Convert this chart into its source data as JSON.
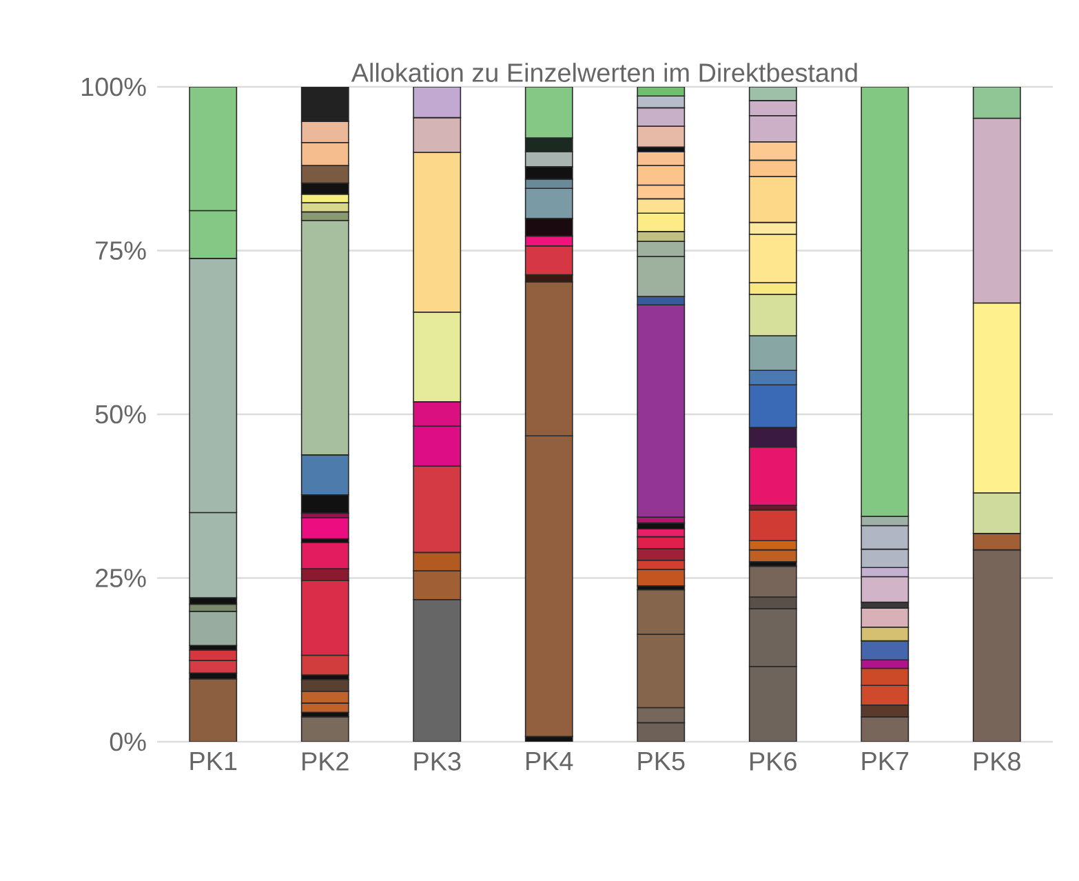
{
  "chart_data": {
    "type": "bar",
    "title": "Allokation zu Einzelwerten im Direktbestand",
    "stacked": true,
    "grid": "y",
    "categories": [
      "PK1",
      "PK2",
      "PK3",
      "PK4",
      "PK5",
      "PK6",
      "PK7",
      "PK8"
    ],
    "ylim": [
      0,
      100
    ],
    "yticks": [
      {
        "value": 0,
        "label": "0%"
      },
      {
        "value": 25,
        "label": "25%"
      },
      {
        "value": 50,
        "label": "50%"
      },
      {
        "value": 75,
        "label": "75%"
      },
      {
        "value": 100,
        "label": "100%"
      }
    ],
    "series": [
      {
        "values": [
          9.6,
          3.8,
          21.7,
          0.8,
          2.9,
          11.5,
          3.8,
          29.3
        ],
        "colors": [
          "#8c5f41",
          "#7a6a5c",
          "#666666",
          "#111111",
          "#6e6258",
          "#6f645c",
          "#78665a",
          "#766558"
        ]
      },
      {
        "values": [
          0.9,
          0.7,
          4.4,
          45.9,
          2.3,
          8.8,
          1.8,
          2.5
        ],
        "colors": [
          "#111111",
          "#111111",
          "#a05f35",
          "#93603f",
          "#75675a",
          "#6f645c",
          "#5a3a2a",
          "#a05f35"
        ]
      },
      {
        "values": [
          1.9,
          1.4,
          2.8,
          23.5,
          11.2,
          1.8,
          3.0,
          6.2
        ],
        "colors": [
          "#d63c45",
          "#c0632a",
          "#b35a22",
          "#93603f",
          "#85654c",
          "#5a504a",
          "#cf4a2a",
          "#cfdb9d"
        ]
      },
      {
        "values": [
          1.6,
          1.8,
          13.2,
          1.1,
          6.8,
          4.7,
          2.6,
          29.0
        ],
        "colors": [
          "#d5373f",
          "#c0632a",
          "#d43a44",
          "#3a1a10",
          "#85654c",
          "#766558",
          "#cc4a28",
          "#fdf08d"
        ]
      },
      {
        "values": [
          0.7,
          1.8,
          6.1,
          4.4,
          0.6,
          0.7,
          1.3,
          28.2
        ],
        "colors": [
          "#111111",
          "#5a4030",
          "#dc0d85",
          "#d63744",
          "#111111",
          "#111111",
          "#b0148a",
          "#cdb0c1"
        ]
      },
      {
        "values": [
          5.2,
          0.7,
          3.7,
          1.5,
          2.5,
          1.8,
          2.9,
          4.8
        ],
        "colors": [
          "#98ada0",
          "#111111",
          "#db1080",
          "#f0147a",
          "#c45520",
          "#c06020",
          "#4565ad",
          "#90c595"
        ]
      },
      {
        "values": [
          1.1,
          3.0,
          13.7,
          2.7,
          1.4,
          1.4,
          2.1,
          null
        ],
        "colors": [
          "#7a8a6a",
          "#d13d3d",
          "#e6eb9b",
          "#1a0a10",
          "#d04030",
          "#c96418",
          "#d4c070",
          null
        ]
      },
      {
        "values": [
          1.0,
          11.4,
          24.4,
          4.6,
          1.8,
          4.7,
          2.9,
          null
        ],
        "colors": [
          "#111111",
          "#d92d4a",
          "#fcd98a",
          "#7a9aa6",
          "#a0203a",
          "#d03c34",
          "#d8b0b8",
          null
        ]
      },
      {
        "values": [
          13.0,
          1.8,
          5.3,
          1.4,
          1.8,
          0.7,
          0.9,
          null
        ],
        "colors": [
          "#a3b8ac",
          "#8a1a30",
          "#d4b4b4",
          "#6a8a9a",
          "#e0204a",
          "#6a1a2a",
          "#3a3a3a",
          null
        ]
      },
      {
        "values": [
          38.8,
          4.0,
          4.7,
          1.9,
          1.2,
          8.9,
          3.9,
          null
        ],
        "colors": [
          "#a3b8ac",
          "#e21c5f",
          "#c2a9d1",
          "#111111",
          "#e8206a",
          "#e8156c",
          "#d2b4c8",
          null
        ]
      },
      {
        "values": [
          7.3,
          0.6,
          null,
          2.3,
          0.9,
          3.0,
          1.4,
          null
        ],
        "colors": [
          "#85c785",
          "#111111",
          null,
          "#a7b4b0",
          "#111111",
          "#3a1a40",
          "#c4b0d0",
          null
        ]
      },
      {
        "values": [
          18.9,
          3.2,
          null,
          2.1,
          0.9,
          6.5,
          2.8,
          null
        ],
        "colors": [
          "#85c785",
          "#ec0d80",
          null,
          "#1a2a20",
          "#b01870",
          "#3a6ab5",
          "#b0b6c4",
          null
        ]
      },
      {
        "values": [
          null,
          0.7,
          null,
          7.8,
          32.4,
          2.2,
          3.6,
          null
        ],
        "colors": [
          null,
          "#9a1050",
          null,
          "#85c785",
          "#923594",
          "#4a7ab0",
          "#b0b6c4",
          null
        ]
      },
      {
        "values": [
          null,
          2.8,
          null,
          null,
          1.3,
          5.3,
          1.4,
          null
        ],
        "colors": [
          null,
          "#111111",
          null,
          null,
          "#3a5aa0",
          "#88a6a4",
          "#9fb0a8",
          null
        ]
      },
      {
        "values": [
          null,
          6.1,
          null,
          null,
          6.1,
          6.3,
          65.6,
          null
        ],
        "colors": [
          null,
          "#4d7bab",
          null,
          null,
          "#9eb09e",
          "#d6e09a",
          "#82c883",
          null
        ]
      },
      {
        "values": [
          null,
          35.8,
          null,
          null,
          2.3,
          1.8,
          null,
          null
        ],
        "colors": [
          null,
          "#a7bf9f",
          null,
          null,
          "#9eb09e",
          "#f8e880",
          null,
          null
        ]
      },
      {
        "values": [
          null,
          1.3,
          null,
          null,
          1.5,
          7.4,
          null,
          null
        ],
        "colors": [
          null,
          "#8a9a70",
          null,
          null,
          "#c0c080",
          "#fee68e",
          null,
          null
        ]
      },
      {
        "values": [
          null,
          1.4,
          null,
          null,
          2.8,
          1.8,
          null,
          null
        ],
        "colors": [
          null,
          "#d8d88a",
          null,
          null,
          "#fbec85",
          "#fde8a0",
          null,
          null
        ]
      },
      {
        "values": [
          null,
          1.3,
          null,
          null,
          2.2,
          7.0,
          null,
          null
        ],
        "colors": [
          null,
          "#f5f07a",
          null,
          null,
          "#fde090",
          "#fdd888",
          null,
          null
        ]
      },
      {
        "values": [
          null,
          1.7,
          null,
          null,
          2.1,
          2.5,
          null,
          null
        ],
        "colors": [
          null,
          "#111111",
          null,
          null,
          "#fcc890",
          "#fdc48a",
          null,
          null
        ]
      },
      {
        "values": [
          null,
          2.7,
          null,
          null,
          3.0,
          2.8,
          null,
          null
        ],
        "colors": [
          null,
          "#7a5a40",
          null,
          null,
          "#fcc48a",
          "#fcc990",
          null,
          null
        ]
      },
      {
        "values": [
          null,
          3.5,
          null,
          null,
          2.1,
          4.0,
          null,
          null
        ],
        "colors": [
          null,
          "#f5bd8d",
          null,
          null,
          "#f8c090",
          "#ccb0c8",
          null,
          null
        ]
      },
      {
        "values": [
          null,
          3.2,
          null,
          null,
          0.7,
          2.3,
          null,
          null
        ],
        "colors": [
          null,
          "#ecb89a",
          null,
          null,
          "#111111",
          "#ccb0c8",
          null,
          null
        ]
      },
      {
        "values": [
          null,
          5.3,
          null,
          null,
          3.2,
          2.1,
          null,
          null
        ],
        "colors": [
          null,
          "#222222",
          null,
          null,
          "#e6baa6",
          "#9fc0a8",
          null,
          null
        ]
      },
      {
        "values": [
          null,
          null,
          null,
          null,
          2.8,
          null,
          null,
          null
        ],
        "colors": [
          null,
          null,
          null,
          null,
          "#c8b0c8",
          null,
          null,
          null
        ]
      },
      {
        "values": [
          null,
          null,
          null,
          null,
          1.8,
          null,
          null,
          null
        ],
        "colors": [
          null,
          null,
          null,
          null,
          "#b8bcc8",
          null,
          null,
          null
        ]
      },
      {
        "values": [
          null,
          null,
          null,
          null,
          1.4,
          null,
          null,
          null
        ],
        "colors": [
          null,
          null,
          null,
          null,
          "#6fbf6f",
          null,
          null,
          null
        ]
      }
    ]
  }
}
